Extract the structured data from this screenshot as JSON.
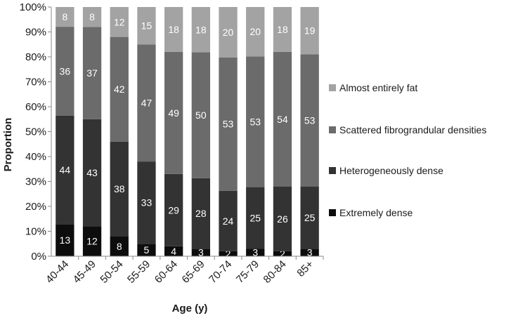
{
  "chart_data": {
    "type": "bar",
    "stacked": true,
    "xlabel": "Age (y)",
    "ylabel": "Proportion",
    "ylim": [
      0,
      100
    ],
    "y_tick_labels": [
      "0%",
      "10%",
      "20%",
      "30%",
      "40%",
      "50%",
      "60%",
      "70%",
      "80%",
      "90%",
      "100%"
    ],
    "categories": [
      "40-44",
      "45-49",
      "50-54",
      "55-59",
      "60-64",
      "65-69",
      "70-74",
      "75-79",
      "80-84",
      "85+"
    ],
    "series": [
      {
        "name": "Extremely dense",
        "color": "#0d0d0d",
        "values": [
          13,
          12,
          8,
          5,
          4,
          3,
          2,
          3,
          2,
          3
        ]
      },
      {
        "name": "Heterogeneously dense",
        "color": "#333333",
        "values": [
          44,
          43,
          38,
          33,
          29,
          28,
          24,
          25,
          26,
          25
        ]
      },
      {
        "name": "Scattered fibrograndular densities",
        "color": "#6b6b6b",
        "values": [
          36,
          37,
          42,
          47,
          49,
          50,
          53,
          53,
          54,
          53
        ]
      },
      {
        "name": "Almost entirely fat",
        "color": "#a3a3a3",
        "values": [
          8,
          8,
          12,
          15,
          18,
          18,
          20,
          20,
          18,
          19
        ]
      }
    ],
    "legend_position": "right",
    "grid": false
  }
}
